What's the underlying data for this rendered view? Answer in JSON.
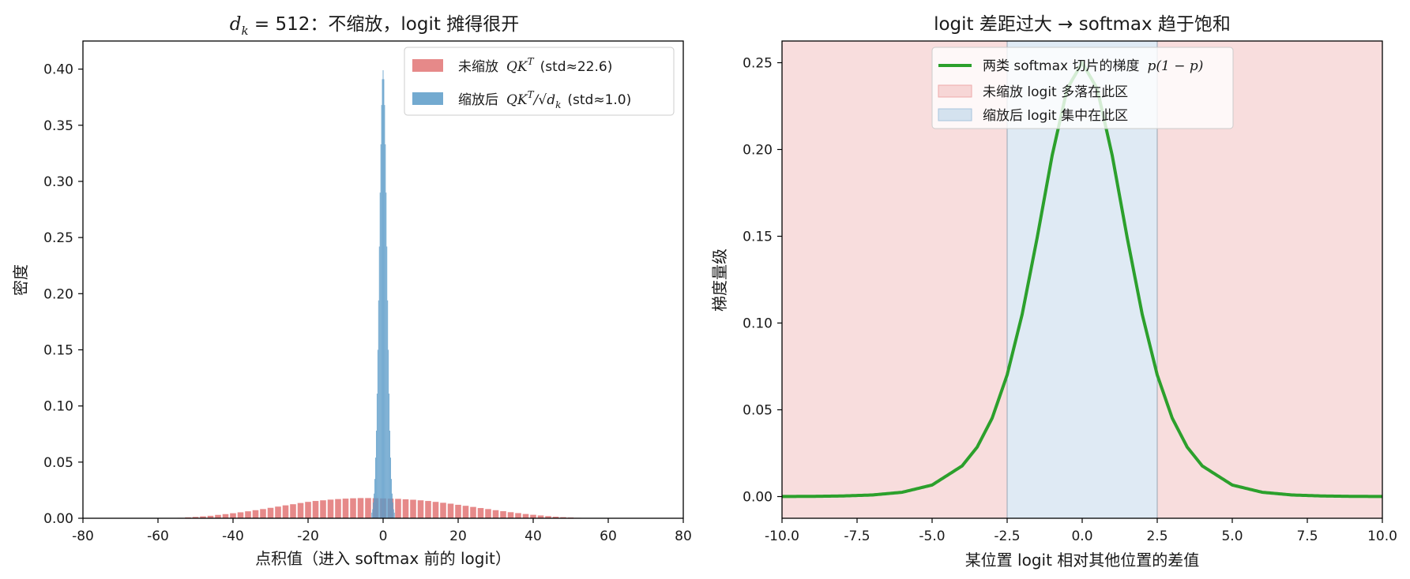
{
  "chart_data": [
    {
      "type": "histogram",
      "title": {
        "math": "d",
        "sub": "k",
        "rest": " = 512",
        "text": "：不缩放，logit 摊得很开"
      },
      "xlabel": "点积值（进入 softmax 前的 logit）",
      "ylabel": "密度",
      "xlim": [
        -80,
        80
      ],
      "ylim": [
        0,
        0.425
      ],
      "xticks": [
        -80,
        -60,
        -40,
        -20,
        0,
        20,
        40,
        60,
        80
      ],
      "xtick_labels": [
        "-80",
        "-60",
        "-40",
        "-20",
        "0",
        "20",
        "40",
        "60",
        "80"
      ],
      "yticks": [
        0,
        0.05,
        0.1,
        0.15,
        0.2,
        0.25,
        0.3,
        0.35,
        0.4
      ],
      "ytick_labels": [
        "0.00",
        "0.05",
        "0.10",
        "0.15",
        "0.20",
        "0.25",
        "0.30",
        "0.35",
        "0.40"
      ],
      "grid": false,
      "legend_position": "upper right",
      "series": [
        {
          "name": "未缩放 QK^T (std≈22.6)",
          "legend_prefix": "未缩放",
          "legend_suffix": "(std≈22.6)",
          "color": "#e06c6c",
          "bin_width": 1.6,
          "bins": [
            [
              -54,
              0.0004
            ],
            [
              -52,
              0.0008
            ],
            [
              -50,
              0.0012
            ],
            [
              -48,
              0.0017
            ],
            [
              -46,
              0.0022
            ],
            [
              -44,
              0.003
            ],
            [
              -42,
              0.0037
            ],
            [
              -40,
              0.0045
            ],
            [
              -38,
              0.0053
            ],
            [
              -36,
              0.0062
            ],
            [
              -34,
              0.0072
            ],
            [
              -32,
              0.0082
            ],
            [
              -30,
              0.0093
            ],
            [
              -28,
              0.0104
            ],
            [
              -26,
              0.0115
            ],
            [
              -24,
              0.0125
            ],
            [
              -22,
              0.0136
            ],
            [
              -20,
              0.0146
            ],
            [
              -18,
              0.0154
            ],
            [
              -16,
              0.016
            ],
            [
              -14,
              0.0166
            ],
            [
              -12,
              0.0171
            ],
            [
              -10,
              0.0175
            ],
            [
              -8,
              0.0178
            ],
            [
              -6,
              0.018
            ],
            [
              -4,
              0.018
            ],
            [
              -2,
              0.0179
            ],
            [
              0,
              0.0177
            ],
            [
              2,
              0.0175
            ],
            [
              4,
              0.0173
            ],
            [
              6,
              0.0169
            ],
            [
              8,
              0.0165
            ],
            [
              10,
              0.016
            ],
            [
              12,
              0.0154
            ],
            [
              14,
              0.0146
            ],
            [
              16,
              0.0138
            ],
            [
              18,
              0.013
            ],
            [
              20,
              0.012
            ],
            [
              22,
              0.0111
            ],
            [
              24,
              0.0101
            ],
            [
              26,
              0.0091
            ],
            [
              28,
              0.0082
            ],
            [
              30,
              0.0072
            ],
            [
              32,
              0.0063
            ],
            [
              34,
              0.0054
            ],
            [
              36,
              0.0046
            ],
            [
              38,
              0.0038
            ],
            [
              40,
              0.0031
            ],
            [
              42,
              0.0025
            ],
            [
              44,
              0.0019
            ],
            [
              46,
              0.0014
            ],
            [
              48,
              0.001
            ],
            [
              50,
              0.0007
            ],
            [
              52,
              0.0004
            ],
            [
              54,
              0.0002
            ]
          ]
        },
        {
          "name": "缩放后 QK^T/√d_k (std≈1.0)",
          "legend_prefix": "缩放后",
          "legend_suffix": "(std≈1.0)",
          "color": "#5b9bc8",
          "bin_width": 0.2,
          "bins": [
            [
              -3.0,
              0.005
            ],
            [
              -2.8,
              0.008
            ],
            [
              -2.6,
              0.014
            ],
            [
              -2.4,
              0.022
            ],
            [
              -2.2,
              0.035
            ],
            [
              -2.0,
              0.054
            ],
            [
              -1.8,
              0.078
            ],
            [
              -1.6,
              0.111
            ],
            [
              -1.4,
              0.15
            ],
            [
              -1.2,
              0.194
            ],
            [
              -1.0,
              0.242
            ],
            [
              -0.8,
              0.29
            ],
            [
              -0.6,
              0.333
            ],
            [
              -0.4,
              0.368
            ],
            [
              -0.2,
              0.391
            ],
            [
              0.0,
              0.399
            ],
            [
              0.2,
              0.391
            ],
            [
              0.4,
              0.368
            ],
            [
              0.6,
              0.333
            ],
            [
              0.8,
              0.29
            ],
            [
              1.0,
              0.242
            ],
            [
              1.2,
              0.194
            ],
            [
              1.4,
              0.15
            ],
            [
              1.6,
              0.111
            ],
            [
              1.8,
              0.078
            ],
            [
              2.0,
              0.054
            ],
            [
              2.2,
              0.035
            ],
            [
              2.4,
              0.022
            ],
            [
              2.6,
              0.014
            ],
            [
              2.8,
              0.008
            ],
            [
              3.0,
              0.005
            ]
          ]
        }
      ]
    },
    {
      "type": "line",
      "title": "logit 差距过大 → softmax 趋于饱和",
      "xlabel": "某位置 logit 相对其他位置的差值",
      "ylabel": "梯度量级",
      "xlim": [
        -10,
        10
      ],
      "ylim": [
        -0.0125,
        0.2625
      ],
      "xticks": [
        -10,
        -7.5,
        -5,
        -2.5,
        0,
        2.5,
        5,
        7.5,
        10
      ],
      "xtick_labels": [
        "-10.0",
        "-7.5",
        "-5.0",
        "-2.5",
        "0.0",
        "2.5",
        "5.0",
        "7.5",
        "10.0"
      ],
      "yticks": [
        0,
        0.05,
        0.1,
        0.15,
        0.2,
        0.25
      ],
      "ytick_labels": [
        "0.00",
        "0.05",
        "0.10",
        "0.15",
        "0.20",
        "0.25"
      ],
      "grid": false,
      "legend_position": "upper center",
      "series": [
        {
          "name": "两类 softmax 切片的梯度 p(1−p)",
          "legend_prefix": "两类 softmax 切片的梯度",
          "color": "#2ca02c",
          "x": [
            -10,
            -9,
            -8,
            -7,
            -6,
            -5,
            -4,
            -3.5,
            -3,
            -2.5,
            -2,
            -1.5,
            -1,
            -0.5,
            0,
            0.5,
            1,
            1.5,
            2,
            2.5,
            3,
            3.5,
            4,
            5,
            6,
            7,
            8,
            9,
            10
          ],
          "y": [
            5e-05,
            0.00012,
            0.00034,
            0.00091,
            0.00247,
            0.00665,
            0.01766,
            0.02845,
            0.04518,
            0.0701,
            0.10499,
            0.14914,
            0.19661,
            0.235,
            0.25,
            0.235,
            0.19661,
            0.14914,
            0.10499,
            0.0701,
            0.04518,
            0.02845,
            0.01766,
            0.00665,
            0.00247,
            0.00091,
            0.00034,
            0.00012,
            5e-05
          ]
        }
      ],
      "regions": [
        {
          "name": "未缩放 logit 多落在此区",
          "x_ranges": [
            [
              -10,
              -2.5
            ],
            [
              2.5,
              10
            ]
          ],
          "color": "#f4c7c7"
        },
        {
          "name": "缩放后 logit 集中在此区",
          "x_ranges": [
            [
              -2.5,
              2.5
            ]
          ],
          "color": "#c9dcec"
        }
      ]
    }
  ]
}
